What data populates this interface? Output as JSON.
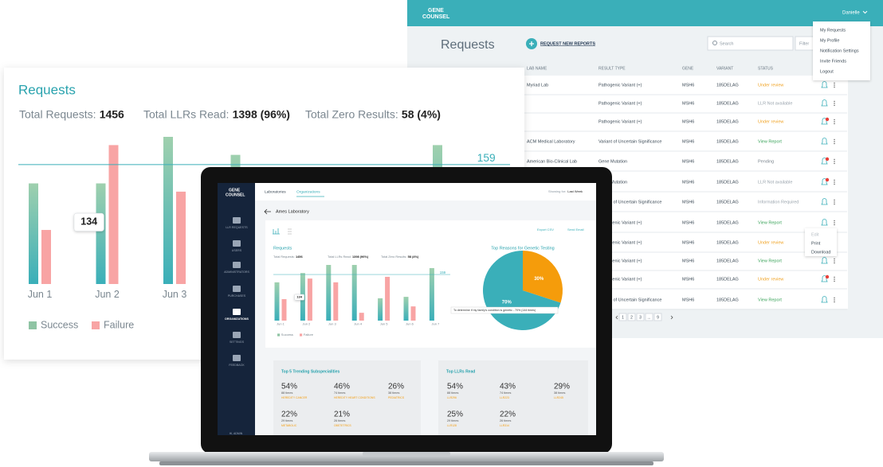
{
  "app": {
    "logo_top": "GENE",
    "logo_bottom": "COUNSEL",
    "user": "Danielle",
    "menu": [
      "My Requests",
      "My Profile",
      "Notification Settings",
      "Invite Friends",
      "Logout"
    ],
    "title": "Requests",
    "new_button": "REQUEST NEW REPORTS",
    "search": "Search",
    "filter": "Filter",
    "columns": [
      "LAB NAME",
      "RESULT TYPE",
      "GENE",
      "VARIANT",
      "STATUS"
    ],
    "rows": [
      {
        "lab": "Myriad Lab",
        "result": "Pathogenic Variant (+)",
        "gene": "MSH6",
        "variant": "185DELAG",
        "status": "Under review",
        "status_color": "#f0a324",
        "badge": false
      },
      {
        "lab": null,
        "result": "Pathogenic Variant (+)",
        "gene": "MSH6",
        "variant": "185DELAG",
        "status": "LLR Not available",
        "status_color": "#9aa4ad",
        "badge": false
      },
      {
        "lab": null,
        "result": "Pathogenic Variant (+)",
        "gene": "MSH6",
        "variant": "185DELAG",
        "status": "Under review",
        "status_color": "#f0a324",
        "badge": true
      },
      {
        "lab": "ACM Medical Laboratory",
        "result": "Variant of Uncertain Significance",
        "gene": "MSH6",
        "variant": "185DELAG",
        "status": "View Report",
        "status_color": "#3aa35a",
        "badge": false
      },
      {
        "lab": "American Bio-Clinical Lab",
        "result": "Gene Mutation",
        "gene": "MSH6",
        "variant": "185DELAG",
        "status": "Pending",
        "status_color": "#7d8790",
        "badge": true
      },
      {
        "lab": null,
        "result": "Gene Mutation",
        "gene": "MSH6",
        "variant": "185DELAG",
        "status": "LLR Not available",
        "status_color": "#9aa4ad",
        "badge": true
      },
      {
        "lab": null,
        "result": "Variant of Uncertain Significance",
        "gene": "MSH6",
        "variant": "185DELAG",
        "status": "Information Required",
        "status_color": "#9aa4ad",
        "badge": false
      },
      {
        "lab": null,
        "result": "Pathogenic Variant (+)",
        "gene": "MSH6",
        "variant": "185DELAG",
        "status": "View Report",
        "status_color": "#3aa35a",
        "badge": false
      },
      {
        "lab": null,
        "result": "Pathogenic Variant (+)",
        "gene": "MSH6",
        "variant": "185DELAG",
        "status": "Under review",
        "status_color": "#f0a324",
        "badge": false
      },
      {
        "lab": null,
        "result": "Pathogenic Variant (+)",
        "gene": "MSH6",
        "variant": "185DELAG",
        "status": "View Report",
        "status_color": "#3aa35a",
        "badge": false
      },
      {
        "lab": null,
        "result": "Pathogenic Variant (+)",
        "gene": "MSH6",
        "variant": "185DELAG",
        "status": "Under review",
        "status_color": "#f0a324",
        "badge": true
      },
      {
        "lab": null,
        "result": "Variant of Uncertain Significance",
        "gene": "MSH6",
        "variant": "185DELAG",
        "status": "View Report",
        "status_color": "#3aa35a",
        "badge": false
      }
    ],
    "row_menu": [
      "Edit",
      "Print",
      "Download"
    ],
    "pages": [
      "1",
      "2",
      "3",
      "...",
      "9"
    ]
  },
  "card": {
    "title": "Requests",
    "stats": [
      {
        "label": "Total Requests:",
        "value": "1456"
      },
      {
        "label": "Total LLRs Read:",
        "value": "1398 (96%)"
      },
      {
        "label": "Total Zero Results:",
        "value": "58 (4%)"
      }
    ],
    "chart": {
      "type": "bar",
      "categories": [
        "Jun 1",
        "Jun 2",
        "Jun 3",
        null,
        null,
        null,
        null
      ],
      "series": [
        {
          "name": "Success",
          "color": "#3aafb9",
          "values": [
            134,
            134,
            196,
            172,
            null,
            null,
            185
          ]
        },
        {
          "name": "Failure",
          "color": "#f8a4a4",
          "values": [
            72,
            185,
            123,
            null,
            null,
            null,
            null
          ]
        }
      ],
      "reference_line": 159,
      "tooltip": 134
    }
  },
  "laptop": {
    "logo_top": "GENE",
    "logo_bottom": "COUNSEL",
    "sidebar": [
      "LLR REQUESTS",
      "USERS",
      "ADMINISTRATORS",
      "PURCHASES",
      "ORGANIZATIONS",
      "SETTINGS",
      "FEEDBACK"
    ],
    "user": "HI, ADMIN",
    "tabs": [
      "Laboratories",
      "Organizations"
    ],
    "showing_label": "Showing for:",
    "showing_value": "Last Week",
    "lab": "Ames Laboratory",
    "export": "Export CSV",
    "email": "Send Email",
    "requests_title": "Requests",
    "stats": [
      {
        "label": "Total Requests:",
        "value": "1456"
      },
      {
        "label": "Total LLRs Read:",
        "value": "1398 (96%)"
      },
      {
        "label": "Total Zero Results:",
        "value": "58 (4%)"
      }
    ],
    "chart": {
      "type": "bar",
      "categories": [
        "Jun 1",
        "Jun 2",
        "Jun 3",
        "Jun 4",
        "Jun 5",
        "Jun 6",
        "Jun 7"
      ],
      "series": [
        {
          "name": "Success",
          "color": "#3aafb9",
          "values": [
            132,
            164,
            192,
            192,
            77,
            82,
            181
          ]
        },
        {
          "name": "Failure",
          "color": "#f8a4a4",
          "values": [
            74,
            145,
            132,
            27,
            151,
            49,
            null
          ]
        }
      ],
      "reference_line": 159,
      "tooltip": 134
    },
    "pie": {
      "type": "pie",
      "title": "Top Reasons for Genetic Testing",
      "values": [
        70,
        30
      ],
      "value_labels": [
        "70%",
        "30%"
      ],
      "colors": [
        "#3aafb9",
        "#f59c0b"
      ],
      "tooltip": "To determine if my family's condition is genetic - 70% (144 times)"
    },
    "cards": [
      {
        "title": "Top 5 Trending Subspecialities",
        "items": [
          {
            "percent": "54%",
            "times": "88 times",
            "name": "HEREDITY CANCER"
          },
          {
            "percent": "46%",
            "times": "74 times",
            "name": "HEREDITY HEART CONDITIONS"
          },
          {
            "percent": "26%",
            "times": "38 times",
            "name": "PEDIATRICS"
          },
          {
            "percent": "22%",
            "times": "29 times",
            "name": "METABOLIC"
          },
          {
            "percent": "21%",
            "times": "26 times",
            "name": "OBSTETRICS"
          }
        ]
      },
      {
        "title": "Top LLRs Read",
        "items": [
          {
            "percent": "54%",
            "times": "88 times",
            "name": "LLR296"
          },
          {
            "percent": "43%",
            "times": "74 times",
            "name": "LLR223"
          },
          {
            "percent": "29%",
            "times": "38 times",
            "name": "LLR245"
          },
          {
            "percent": "25%",
            "times": "29 times",
            "name": "LLR128"
          },
          {
            "percent": "22%",
            "times": "26 times",
            "name": "LLR314"
          }
        ]
      }
    ]
  }
}
